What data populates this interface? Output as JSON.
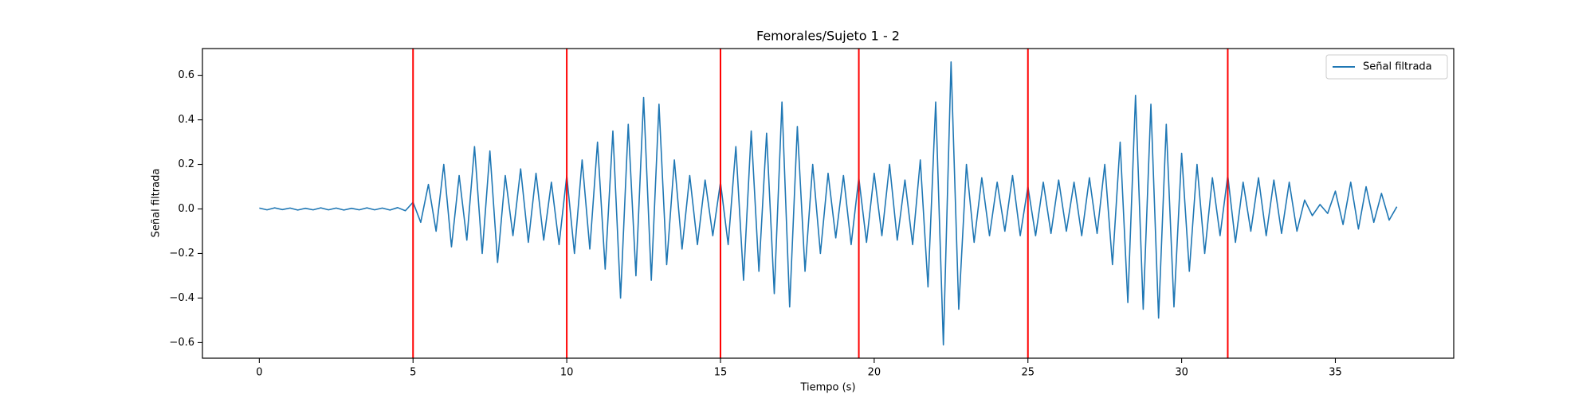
{
  "chart_data": {
    "type": "line",
    "title": "Femorales/Sujeto 1 - 2",
    "xlabel": "Tiempo (s)",
    "ylabel": "Señal filtrada",
    "x": [
      0,
      0.25,
      0.5,
      0.75,
      1,
      1.25,
      1.5,
      1.75,
      2,
      2.25,
      2.5,
      2.75,
      3,
      3.25,
      3.5,
      3.75,
      4,
      4.25,
      4.5,
      4.75,
      5,
      5.25,
      5.5,
      5.75,
      6,
      6.25,
      6.5,
      6.75,
      7,
      7.25,
      7.5,
      7.75,
      8,
      8.25,
      8.5,
      8.75,
      9,
      9.25,
      9.5,
      9.75,
      10,
      10.25,
      10.5,
      10.75,
      11,
      11.25,
      11.5,
      11.75,
      12,
      12.25,
      12.5,
      12.75,
      13,
      13.25,
      13.5,
      13.75,
      14,
      14.25,
      14.5,
      14.75,
      15,
      15.25,
      15.5,
      15.75,
      16,
      16.25,
      16.5,
      16.75,
      17,
      17.25,
      17.5,
      17.75,
      18,
      18.25,
      18.5,
      18.75,
      19,
      19.25,
      19.5,
      19.75,
      20,
      20.25,
      20.5,
      20.75,
      21,
      21.25,
      21.5,
      21.75,
      22,
      22.25,
      22.5,
      22.75,
      23,
      23.25,
      23.5,
      23.75,
      24,
      24.25,
      24.5,
      24.75,
      25,
      25.25,
      25.5,
      25.75,
      26,
      26.25,
      26.5,
      26.75,
      27,
      27.25,
      27.5,
      27.75,
      28,
      28.25,
      28.5,
      28.75,
      29,
      29.25,
      29.5,
      29.75,
      30,
      30.25,
      30.5,
      30.75,
      31,
      31.25,
      31.5,
      31.75,
      32,
      32.25,
      32.5,
      32.75,
      33,
      33.25,
      33.5,
      33.75,
      34,
      34.25,
      34.5,
      34.75,
      35,
      35.25,
      35.5,
      35.75,
      36,
      36.25,
      36.5,
      36.75,
      37
    ],
    "series": [
      {
        "name": "Señal filtrada",
        "color": "#1f77b4",
        "values": [
          0.004,
          -0.004,
          0.005,
          -0.003,
          0.004,
          -0.005,
          0.003,
          -0.004,
          0.005,
          -0.004,
          0.004,
          -0.005,
          0.003,
          -0.004,
          0.005,
          -0.004,
          0.004,
          -0.005,
          0.006,
          -0.008,
          0.03,
          -0.06,
          0.11,
          -0.1,
          0.2,
          -0.17,
          0.15,
          -0.14,
          0.28,
          -0.2,
          0.26,
          -0.24,
          0.15,
          -0.12,
          0.18,
          -0.15,
          0.16,
          -0.14,
          0.12,
          -0.16,
          0.15,
          -0.2,
          0.22,
          -0.18,
          0.3,
          -0.27,
          0.35,
          -0.4,
          0.38,
          -0.3,
          0.5,
          -0.32,
          0.47,
          -0.25,
          0.22,
          -0.18,
          0.15,
          -0.16,
          0.13,
          -0.12,
          0.12,
          -0.16,
          0.28,
          -0.32,
          0.35,
          -0.28,
          0.34,
          -0.38,
          0.48,
          -0.44,
          0.37,
          -0.28,
          0.2,
          -0.2,
          0.16,
          -0.13,
          0.15,
          -0.16,
          0.14,
          -0.15,
          0.16,
          -0.12,
          0.2,
          -0.14,
          0.13,
          -0.16,
          0.22,
          -0.35,
          0.48,
          -0.61,
          0.66,
          -0.45,
          0.2,
          -0.15,
          0.14,
          -0.12,
          0.12,
          -0.1,
          0.15,
          -0.12,
          0.1,
          -0.12,
          0.12,
          -0.11,
          0.13,
          -0.1,
          0.12,
          -0.12,
          0.14,
          -0.11,
          0.2,
          -0.25,
          0.3,
          -0.42,
          0.51,
          -0.45,
          0.47,
          -0.49,
          0.38,
          -0.44,
          0.25,
          -0.28,
          0.2,
          -0.2,
          0.14,
          -0.12,
          0.15,
          -0.15,
          0.12,
          -0.1,
          0.14,
          -0.12,
          0.13,
          -0.11,
          0.12,
          -0.1,
          0.04,
          -0.03,
          0.02,
          -0.02,
          0.08,
          -0.07,
          0.12,
          -0.09,
          0.1,
          -0.06,
          0.07,
          -0.05,
          0.01
        ]
      }
    ],
    "vlines": [
      5,
      10,
      15,
      19.5,
      25,
      31.5
    ],
    "vline_color": "#ff0000",
    "xlim": [
      -1.85,
      38.85
    ],
    "ylim": [
      -0.67,
      0.72
    ],
    "xticks": [
      0,
      5,
      10,
      15,
      20,
      25,
      30,
      35
    ],
    "yticks": [
      {
        "value": -0.6,
        "label": "−0.6"
      },
      {
        "value": -0.4,
        "label": "−0.4"
      },
      {
        "value": -0.2,
        "label": "−0.2"
      },
      {
        "value": 0.0,
        "label": "0.0"
      },
      {
        "value": 0.2,
        "label": "0.2"
      },
      {
        "value": 0.4,
        "label": "0.4"
      },
      {
        "value": 0.6,
        "label": "0.6"
      }
    ],
    "legend": "upper right",
    "grid": false
  }
}
